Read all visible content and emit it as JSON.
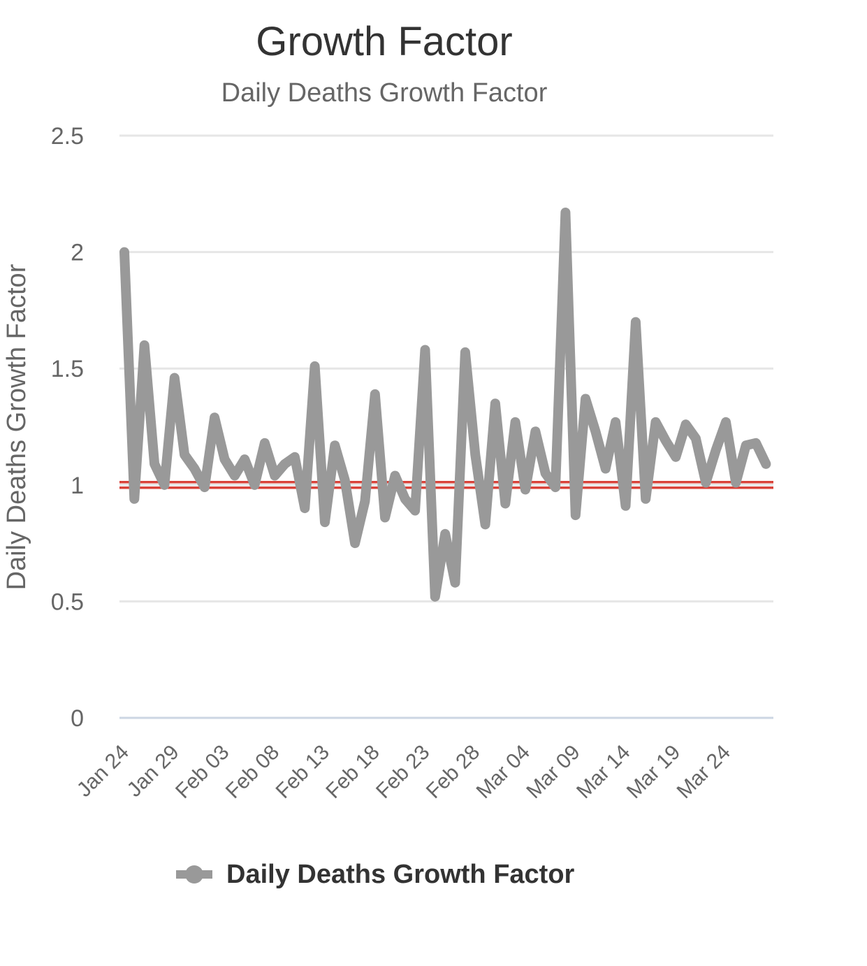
{
  "chart_data": {
    "type": "line",
    "title": "Growth Factor",
    "subtitle": "Daily Deaths Growth Factor",
    "ylabel": "Daily Deaths Growth Factor",
    "xlabel": "",
    "ylim": [
      0,
      2.5
    ],
    "yticks": [
      "0",
      "0.5",
      "1",
      "1.5",
      "2",
      "2.5"
    ],
    "xticks": [
      "Jan 24",
      "Jan 29",
      "Feb 03",
      "Feb 08",
      "Feb 13",
      "Feb 18",
      "Feb 23",
      "Feb 28",
      "Mar 04",
      "Mar 09",
      "Mar 14",
      "Mar 19",
      "Mar 24"
    ],
    "grid": true,
    "legend": "bottom",
    "reference_line": {
      "value": 1,
      "color": "#d9433a",
      "style": "dashed"
    },
    "series": [
      {
        "name": "Daily Deaths Growth Factor",
        "color": "#999999",
        "start_date": "Jan 24",
        "values": [
          2.0,
          0.94,
          1.6,
          1.09,
          1.0,
          1.46,
          1.13,
          1.07,
          0.99,
          1.29,
          1.11,
          1.04,
          1.11,
          1.0,
          1.18,
          1.04,
          1.09,
          1.12,
          0.9,
          1.51,
          0.84,
          1.17,
          1.02,
          0.75,
          0.93,
          1.39,
          0.86,
          1.04,
          0.94,
          0.89,
          1.58,
          0.52,
          0.79,
          0.58,
          1.57,
          1.13,
          0.83,
          1.35,
          0.92,
          1.27,
          0.98,
          1.23,
          1.05,
          0.99,
          2.17,
          0.87,
          1.37,
          1.23,
          1.07,
          1.27,
          0.91,
          1.7,
          0.94,
          1.27,
          1.19,
          1.12,
          1.26,
          1.2,
          1.01,
          1.15,
          1.27,
          1.01,
          1.17,
          1.18,
          1.09
        ]
      }
    ]
  }
}
